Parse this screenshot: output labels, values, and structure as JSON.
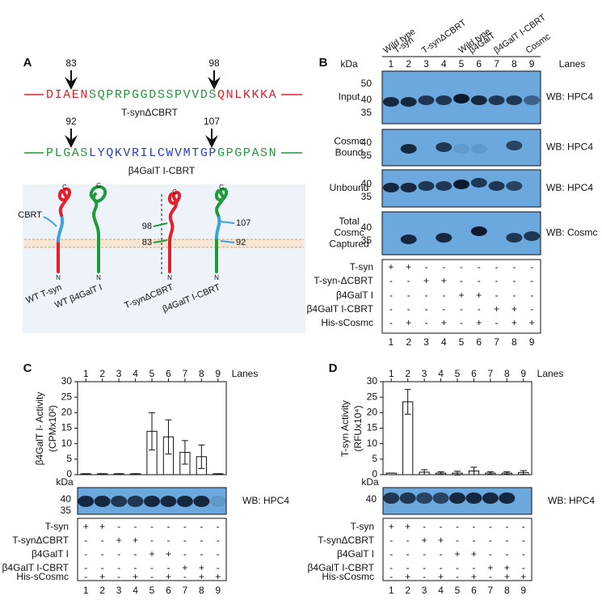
{
  "panel_a": {
    "label": "A",
    "sequences": [
      {
        "left_number": 83,
        "right_number": 98,
        "segments": [
          {
            "text": "DIAEN",
            "color": "#e3202a"
          },
          {
            "text": "SQPRPGGDSSPVVDS",
            "color": "#1f9a3a"
          },
          {
            "text": "QNLKKKA",
            "color": "#e3202a"
          }
        ],
        "name": "T-synΔCBRT"
      },
      {
        "left_number": 92,
        "right_number": 107,
        "segments": [
          {
            "text": "PLGAS",
            "color": "#1f9a3a"
          },
          {
            "text": "LYQKVRILCWVMTGP",
            "color": "#2a3fbf"
          },
          {
            "text": "GPGPASN",
            "color": "#1f9a3a"
          }
        ],
        "name": "β4GalT I-CBRT"
      }
    ],
    "diagram": {
      "c_label": "C",
      "n_label": "N",
      "cbrt": "CBRT",
      "numbers": [
        98,
        83,
        107,
        92
      ],
      "names": [
        "WT T-syn",
        "WT β4GalT I",
        "T-synΔCBRT",
        "β4GalT I-CBRT"
      ]
    }
  },
  "panel_b": {
    "label": "B",
    "kda": "kDa",
    "lanes_title": "Lanes",
    "lanes": [
      1,
      2,
      3,
      4,
      5,
      6,
      7,
      8,
      9
    ],
    "groups": [
      [
        "Wild type",
        "T-syn"
      ],
      [
        "T-synΔCBRT"
      ],
      [
        "Wild type",
        "β4GalT"
      ],
      [
        "β4GalT I-CBRT"
      ],
      [
        "Cosmc"
      ]
    ],
    "blots": [
      {
        "label": [
          "Input"
        ],
        "markers": [
          50,
          40,
          35
        ],
        "wb": "WB: HPC4"
      },
      {
        "label": [
          "Cosmc",
          "Bound"
        ],
        "markers": [
          40,
          35
        ],
        "wb": "WB: HPC4"
      },
      {
        "label": [
          "Unbound"
        ],
        "markers": [
          40,
          35
        ],
        "wb": "WB: HPC4"
      },
      {
        "label": [
          "Total",
          "Cosmc",
          "Captured"
        ],
        "markers": [
          40,
          35
        ],
        "wb": "WB: Cosmc"
      }
    ],
    "table": {
      "rows": [
        {
          "label": "T-syn",
          "cells": [
            "+",
            "+",
            "-",
            "-",
            "-",
            "-",
            "-",
            "-",
            "-"
          ]
        },
        {
          "label": "T-syn-ΔCBRT",
          "cells": [
            "-",
            "-",
            "+",
            "+",
            "-",
            "-",
            "-",
            "-",
            "-"
          ]
        },
        {
          "label": "β4GalT I",
          "cells": [
            "-",
            "-",
            "-",
            "-",
            "+",
            "+",
            "-",
            "-",
            "-"
          ]
        },
        {
          "label": "β4GalT I-CBRT",
          "cells": [
            "-",
            "-",
            "-",
            "-",
            "-",
            "-",
            "+",
            "+",
            "-"
          ]
        },
        {
          "label": "His-sCosmc",
          "cells": [
            "-",
            "+",
            "-",
            "+",
            "-",
            "+",
            "-",
            "+",
            "+"
          ]
        }
      ]
    }
  },
  "chart_data": [
    {
      "type": "bar",
      "panel_label": "C",
      "ylabel": [
        "β4GalT I- Activity",
        "(CPMx10²)"
      ],
      "lanes_title": "Lanes",
      "categories": [
        1,
        2,
        3,
        4,
        5,
        6,
        7,
        8,
        9
      ],
      "values": [
        0.3,
        0.3,
        0.3,
        0.3,
        14,
        12.2,
        7.2,
        5.8,
        0.3
      ],
      "errors": [
        0,
        0,
        0,
        0,
        6,
        5.5,
        3.8,
        3.8,
        0
      ],
      "color": "#ffffff",
      "ylim": [
        0,
        30
      ],
      "yticks": [
        0,
        5,
        10,
        15,
        20,
        25,
        30
      ],
      "blot": {
        "kda": "kDa",
        "markers": [
          40,
          35
        ],
        "wb": "WB: HPC4"
      },
      "table": {
        "rows": [
          {
            "label": "T-syn",
            "cells": [
              "+",
              "+",
              "-",
              "-",
              "-",
              "-",
              "-",
              "-",
              "-"
            ]
          },
          {
            "label": "T-synΔCBRT",
            "cells": [
              "-",
              "-",
              "+",
              "+",
              "-",
              "-",
              "-",
              "-",
              "-"
            ]
          },
          {
            "label": "β4GalT I",
            "cells": [
              "-",
              "-",
              "-",
              "-",
              "+",
              "+",
              "-",
              "-",
              "-"
            ]
          },
          {
            "label": "β4GalT I-CBRT",
            "cells": [
              "-",
              "-",
              "-",
              "-",
              "-",
              "-",
              "+",
              "+",
              "-"
            ]
          },
          {
            "label": "His-sCosmc",
            "cells": [
              "-",
              "+",
              "-",
              "+",
              "-",
              "+",
              "-",
              "+",
              "+"
            ]
          }
        ]
      }
    },
    {
      "type": "bar",
      "panel_label": "D",
      "ylabel": [
        "T-syn Activity",
        "(RFUx10⁴)"
      ],
      "lanes_title": "Lanes",
      "categories": [
        1,
        2,
        3,
        4,
        5,
        6,
        7,
        8,
        9
      ],
      "values": [
        0.5,
        23.5,
        0.8,
        0.5,
        0.5,
        1.2,
        0.5,
        0.5,
        0.7
      ],
      "errors": [
        0,
        4,
        0.8,
        0.4,
        0.6,
        1.2,
        0.4,
        0.4,
        0.6
      ],
      "color": "#ffffff",
      "ylim": [
        0,
        30
      ],
      "yticks": [
        0,
        5,
        10,
        15,
        20,
        25,
        30
      ],
      "blot": {
        "kda": "kDa",
        "markers": [
          40
        ],
        "wb": "WB: HPC4"
      },
      "table": {
        "rows": [
          {
            "label": "T-syn",
            "cells": [
              "+",
              "+",
              "-",
              "-",
              "-",
              "-",
              "-",
              "-",
              "-"
            ]
          },
          {
            "label": "T-synΔCBRT",
            "cells": [
              "-",
              "-",
              "+",
              "+",
              "-",
              "-",
              "-",
              "-",
              "-"
            ]
          },
          {
            "label": "β4GalT I",
            "cells": [
              "-",
              "-",
              "-",
              "-",
              "+",
              "+",
              "-",
              "-",
              "-"
            ]
          },
          {
            "label": "β4GalT I-CBRT",
            "cells": [
              "-",
              "-",
              "-",
              "-",
              "-",
              "-",
              "+",
              "+",
              "-"
            ]
          },
          {
            "label": "His-sCosmc",
            "cells": [
              "-",
              "+",
              "-",
              "+",
              "-",
              "+",
              "-",
              "+",
              "+"
            ]
          }
        ]
      }
    }
  ]
}
